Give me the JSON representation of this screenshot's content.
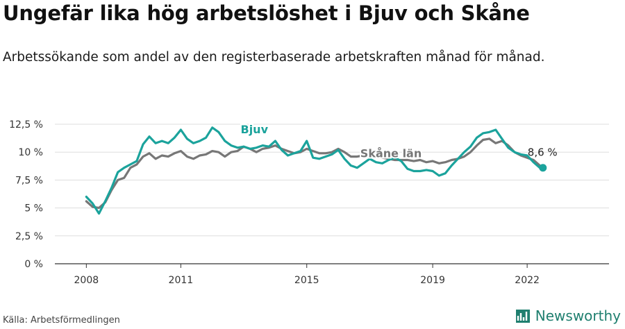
{
  "title": "Ungefär lika hög arbetslöshet i Bjuv och Skåne",
  "subtitle": "Arbetssökande som andel av den registerbaserade arbetskraften månad för månad.",
  "source": "Källa: Arbetsförmedlingen",
  "brand": "Newsworthy",
  "colors": {
    "bjuv": "#1ba39c",
    "skane": "#777777",
    "brand": "#1f7f6f"
  },
  "chart_data": {
    "type": "line",
    "ylim": [
      0,
      12.5
    ],
    "xlim": [
      2007.0,
      2024.6
    ],
    "y_ticks": [
      {
        "value": 0,
        "label": "0 %"
      },
      {
        "value": 2.5,
        "label": "2,5 %"
      },
      {
        "value": 5,
        "label": "5 %"
      },
      {
        "value": 7.5,
        "label": "7,5 %"
      },
      {
        "value": 10,
        "label": "10 %"
      },
      {
        "value": 12.5,
        "label": "12,5 %"
      }
    ],
    "x_ticks": [
      {
        "value": 2008,
        "label": "2008"
      },
      {
        "value": 2011,
        "label": "2011"
      },
      {
        "value": 2015,
        "label": "2015"
      },
      {
        "value": 2019,
        "label": "2019"
      },
      {
        "value": 2022,
        "label": "2022"
      }
    ],
    "grid": true,
    "series": [
      {
        "name": "Skåne län",
        "color": "#777777",
        "x": [
          2008.0,
          2008.2,
          2008.4,
          2008.6,
          2008.8,
          2009.0,
          2009.2,
          2009.4,
          2009.6,
          2009.8,
          2010.0,
          2010.2,
          2010.4,
          2010.6,
          2010.8,
          2011.0,
          2011.2,
          2011.4,
          2011.6,
          2011.8,
          2012.0,
          2012.2,
          2012.4,
          2012.6,
          2012.8,
          2013.0,
          2013.2,
          2013.4,
          2013.6,
          2013.8,
          2014.0,
          2014.2,
          2014.4,
          2014.6,
          2014.8,
          2015.0,
          2015.2,
          2015.4,
          2015.6,
          2015.8,
          2016.0,
          2016.2,
          2016.4,
          2016.6,
          2016.8,
          2017.0,
          2017.2,
          2017.4,
          2017.6,
          2017.8,
          2018.0,
          2018.2,
          2018.4,
          2018.6,
          2018.8,
          2019.0,
          2019.2,
          2019.4,
          2019.6,
          2019.8,
          2020.0,
          2020.2,
          2020.4,
          2020.6,
          2020.8,
          2021.0,
          2021.2,
          2021.4,
          2021.6,
          2021.8,
          2022.0,
          2022.2,
          2022.4,
          2022.5
        ],
        "y": [
          5.6,
          5.1,
          5.0,
          5.5,
          6.6,
          7.5,
          7.7,
          8.6,
          8.9,
          9.6,
          9.9,
          9.4,
          9.7,
          9.6,
          9.9,
          10.1,
          9.6,
          9.4,
          9.7,
          9.8,
          10.1,
          10.0,
          9.6,
          10.0,
          10.1,
          10.5,
          10.3,
          10.0,
          10.3,
          10.4,
          10.6,
          10.3,
          10.1,
          9.9,
          10.0,
          10.3,
          10.1,
          9.9,
          9.9,
          10.0,
          10.3,
          10.0,
          9.6,
          9.6,
          9.7,
          9.6,
          9.6,
          9.5,
          9.4,
          9.3,
          9.3,
          9.3,
          9.2,
          9.3,
          9.1,
          9.2,
          9.0,
          9.1,
          9.3,
          9.4,
          9.6,
          10.0,
          10.6,
          11.1,
          11.2,
          10.8,
          11.0,
          10.6,
          10.0,
          9.7,
          9.5,
          9.3,
          8.8,
          8.6
        ]
      },
      {
        "name": "Bjuv",
        "color": "#1ba39c",
        "x": [
          2008.0,
          2008.2,
          2008.4,
          2008.6,
          2008.8,
          2009.0,
          2009.2,
          2009.4,
          2009.6,
          2009.8,
          2010.0,
          2010.2,
          2010.4,
          2010.6,
          2010.8,
          2011.0,
          2011.2,
          2011.4,
          2011.6,
          2011.8,
          2012.0,
          2012.2,
          2012.4,
          2012.6,
          2012.8,
          2013.0,
          2013.2,
          2013.4,
          2013.6,
          2013.8,
          2014.0,
          2014.2,
          2014.4,
          2014.6,
          2014.8,
          2015.0,
          2015.2,
          2015.4,
          2015.6,
          2015.8,
          2016.0,
          2016.2,
          2016.4,
          2016.6,
          2016.8,
          2017.0,
          2017.2,
          2017.4,
          2017.6,
          2017.8,
          2018.0,
          2018.2,
          2018.4,
          2018.6,
          2018.8,
          2019.0,
          2019.2,
          2019.4,
          2019.6,
          2019.8,
          2020.0,
          2020.2,
          2020.4,
          2020.6,
          2020.8,
          2021.0,
          2021.2,
          2021.4,
          2021.6,
          2021.8,
          2022.0,
          2022.2,
          2022.4,
          2022.5
        ],
        "y": [
          6.0,
          5.4,
          4.5,
          5.6,
          6.8,
          8.2,
          8.6,
          8.9,
          9.2,
          10.7,
          11.4,
          10.8,
          11.0,
          10.8,
          11.3,
          12.0,
          11.2,
          10.8,
          11.0,
          11.3,
          12.2,
          11.8,
          11.0,
          10.6,
          10.4,
          10.5,
          10.3,
          10.4,
          10.6,
          10.5,
          11.0,
          10.2,
          9.7,
          9.9,
          10.1,
          11.0,
          9.5,
          9.4,
          9.6,
          9.8,
          10.2,
          9.4,
          8.8,
          8.6,
          9.0,
          9.4,
          9.1,
          9.0,
          9.3,
          9.5,
          9.2,
          8.5,
          8.3,
          8.3,
          8.4,
          8.3,
          7.9,
          8.1,
          8.8,
          9.4,
          10.0,
          10.5,
          11.3,
          11.7,
          11.8,
          12.0,
          11.2,
          10.4,
          10.0,
          9.8,
          9.7,
          9.1,
          8.6,
          8.6
        ]
      }
    ],
    "labels": {
      "bjuv": "Bjuv",
      "skane": "Skåne län",
      "end_value": "8,6 %"
    }
  }
}
